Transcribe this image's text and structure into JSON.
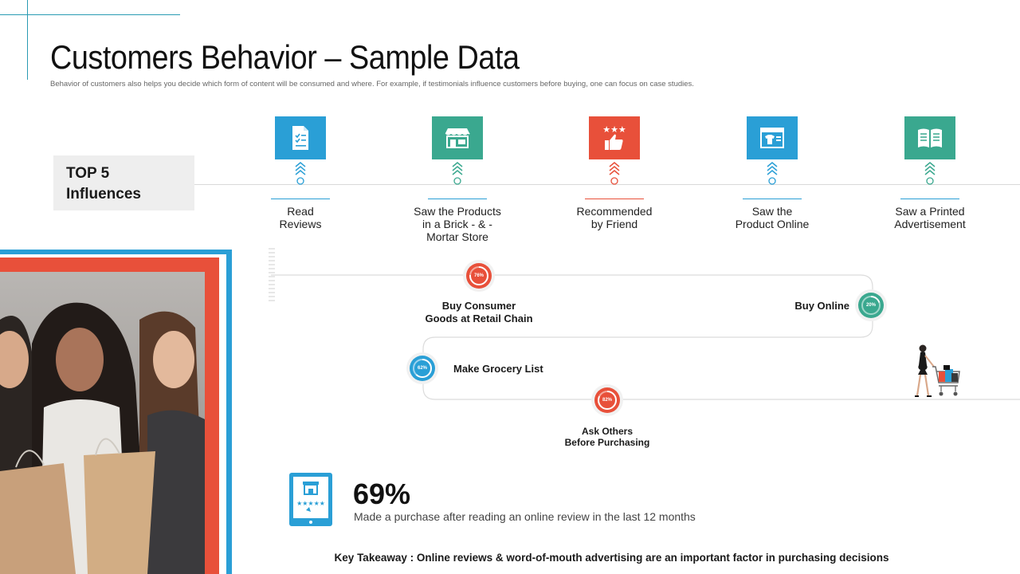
{
  "header": {
    "title": "Customers Behavior – Sample Data",
    "subtitle": "Behavior of customers also helps you decide which form of content will be consumed and where. For example, if testimonials influence customers before buying, one can focus on case studies."
  },
  "top5": {
    "line1": "TOP 5",
    "line2": "Influences"
  },
  "influences": [
    {
      "line1": "Read",
      "line2": "Reviews",
      "line3": "",
      "color": "#2a9fd6",
      "icon": "checklist-document-icon"
    },
    {
      "line1": "Saw the Products",
      "line2": "in a Brick - & -",
      "line3": "Mortar Store",
      "color": "#3aa88f",
      "icon": "storefront-icon"
    },
    {
      "line1": "Recommended",
      "line2": "by Friend",
      "line3": "",
      "color": "#e8503a",
      "icon": "thumbs-up-stars-icon"
    },
    {
      "line1": "Saw the",
      "line2": "Product Online",
      "line3": "",
      "color": "#2a9fd6",
      "icon": "browser-shirt-icon"
    },
    {
      "line1": "Saw a Printed",
      "line2": "Advertisement",
      "line3": "",
      "color": "#3aa88f",
      "icon": "open-magazine-icon"
    }
  ],
  "steps": {
    "retail": {
      "percent": "76%",
      "line1": "Buy Consumer",
      "line2": "Goods  at Retail Chain",
      "color": "#e8503a"
    },
    "online": {
      "percent": "20%",
      "label": "Buy Online",
      "color": "#3aa88f"
    },
    "grocery": {
      "percent": "62%",
      "label": "Make Grocery List",
      "color": "#2a9fd6"
    },
    "ask": {
      "percent": "82%",
      "line1": "Ask Others",
      "line2": "Before Purchasing",
      "color": "#e8503a"
    }
  },
  "stat": {
    "value": "69%",
    "text": "Made a purchase after reading an online review in the last 12 months"
  },
  "takeaway": "Key Takeaway : Online reviews & word-of-mouth  advertising are an important factor in purchasing  decisions"
}
